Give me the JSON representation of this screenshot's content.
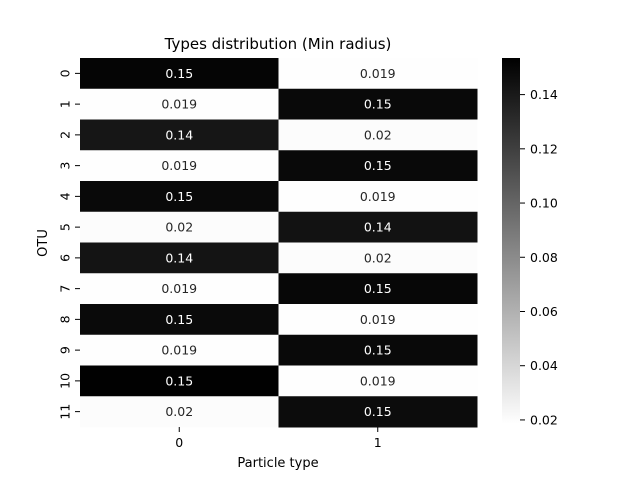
{
  "chart_data": {
    "type": "heatmap",
    "title": "Types distribution (Min radius)",
    "xlabel": "Particle type",
    "ylabel": "OTU",
    "x_categories": [
      "0",
      "1"
    ],
    "y_categories": [
      "0",
      "1",
      "2",
      "3",
      "4",
      "5",
      "6",
      "7",
      "8",
      "9",
      "10",
      "11"
    ],
    "values": [
      [
        0.151,
        0.019
      ],
      [
        0.019,
        0.149
      ],
      [
        0.142,
        0.02
      ],
      [
        0.019,
        0.149
      ],
      [
        0.149,
        0.019
      ],
      [
        0.02,
        0.144
      ],
      [
        0.143,
        0.02
      ],
      [
        0.019,
        0.15
      ],
      [
        0.148,
        0.019
      ],
      [
        0.019,
        0.149
      ],
      [
        0.153,
        0.019
      ],
      [
        0.02,
        0.147
      ]
    ],
    "annotations": [
      [
        "0.15",
        "0.019"
      ],
      [
        "0.019",
        "0.15"
      ],
      [
        "0.14",
        "0.02"
      ],
      [
        "0.019",
        "0.15"
      ],
      [
        "0.15",
        "0.019"
      ],
      [
        "0.02",
        "0.14"
      ],
      [
        "0.14",
        "0.02"
      ],
      [
        "0.019",
        "0.15"
      ],
      [
        "0.15",
        "0.019"
      ],
      [
        "0.019",
        "0.15"
      ],
      [
        "0.15",
        "0.019"
      ],
      [
        "0.02",
        "0.15"
      ]
    ],
    "colorbar": {
      "vmin": 0.0185,
      "vmax": 0.1535,
      "ticks": [
        0.02,
        0.04,
        0.06,
        0.08,
        0.1,
        0.12,
        0.14
      ],
      "tick_labels": [
        "0.02",
        "0.04",
        "0.06",
        "0.08",
        "0.10",
        "0.12",
        "0.14"
      ],
      "colormap": "Greys (white to black)"
    },
    "low_color": "#ffffff",
    "high_color": "#000000",
    "dark_text_color": "#262626",
    "light_text_color": "#ffffff"
  }
}
